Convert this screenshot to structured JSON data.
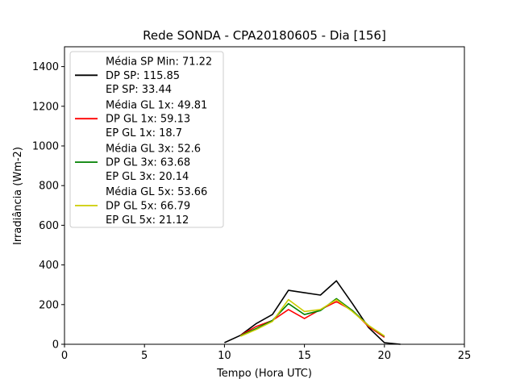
{
  "chart_data": {
    "type": "line",
    "title": "Rede SONDA - CPA20180605 - Dia [156]",
    "xlabel": "Tempo (Hora UTC)",
    "ylabel": "Irradiância (Wm-2)",
    "xlim": [
      0,
      25
    ],
    "ylim": [
      0,
      1500
    ],
    "xticks": [
      0,
      5,
      10,
      15,
      20,
      25
    ],
    "yticks": [
      0,
      200,
      400,
      600,
      800,
      1000,
      1200,
      1400
    ],
    "grid": false,
    "legend_position": "top-left",
    "series": [
      {
        "name": "SP",
        "color": "#000000",
        "legend_lines": [
          "Média SP Min: 71.22",
          "DP SP: 115.85",
          "EP SP: 33.44"
        ],
        "x": [
          10,
          11,
          12,
          13,
          14,
          15,
          16,
          17,
          18,
          19,
          20,
          21
        ],
        "y": [
          8,
          45,
          105,
          150,
          272,
          260,
          248,
          320,
          205,
          85,
          8,
          0
        ]
      },
      {
        "name": "GL 1x",
        "color": "#ff0000",
        "legend_lines": [
          "Média GL 1x: 49.81",
          "DP GL 1x: 59.13",
          "EP GL 1x: 18.7"
        ],
        "x": [
          11,
          12,
          13,
          14,
          15,
          16,
          17,
          18,
          19,
          20
        ],
        "y": [
          45,
          90,
          120,
          175,
          130,
          175,
          215,
          170,
          90,
          35
        ]
      },
      {
        "name": "GL 3x",
        "color": "#008000",
        "legend_lines": [
          "Média GL 3x: 52.6",
          "DP GL 3x: 63.68",
          "EP GL 3x: 20.14"
        ],
        "x": [
          11,
          12,
          13,
          14,
          15,
          16,
          17,
          18,
          19,
          20
        ],
        "y": [
          43,
          80,
          120,
          205,
          150,
          170,
          230,
          170,
          95,
          40
        ]
      },
      {
        "name": "GL 5x",
        "color": "#cccc00",
        "legend_lines": [
          "Média GL 5x: 53.66",
          "DP GL 5x: 66.79",
          "EP GL 5x: 21.12"
        ],
        "x": [
          11,
          12,
          13,
          14,
          15,
          16,
          17,
          18,
          19,
          20
        ],
        "y": [
          40,
          75,
          115,
          225,
          165,
          175,
          225,
          165,
          95,
          42
        ]
      }
    ]
  }
}
